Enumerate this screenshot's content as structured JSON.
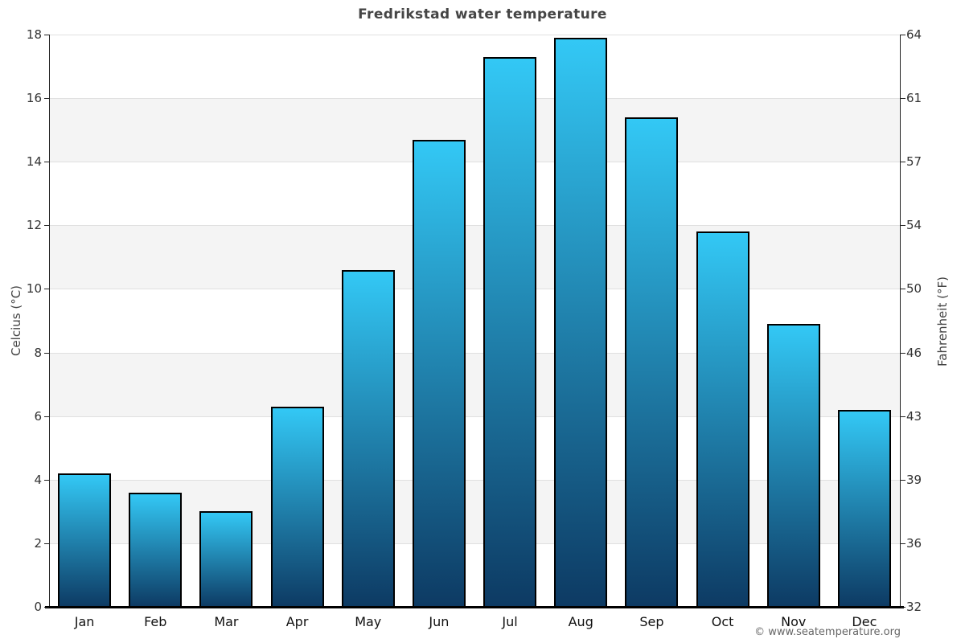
{
  "title": "Fredrikstad water temperature",
  "copyright": "© www.seatemperature.org",
  "chart_data": {
    "type": "bar",
    "title": "Fredrikstad water temperature",
    "categories": [
      "Jan",
      "Feb",
      "Mar",
      "Apr",
      "May",
      "Jun",
      "Jul",
      "Aug",
      "Sep",
      "Oct",
      "Nov",
      "Dec"
    ],
    "values": [
      4.2,
      3.6,
      3.0,
      6.3,
      10.6,
      14.7,
      17.3,
      17.9,
      15.4,
      11.8,
      8.9,
      6.2
    ],
    "ylabel_left": "Celcius (°C)",
    "ylabel_right": "Fahrenheit (°F)",
    "ylim": [
      0,
      18
    ],
    "yticks_left": [
      0,
      2,
      4,
      6,
      8,
      10,
      12,
      14,
      16,
      18
    ],
    "yticks_left_labels": [
      "0",
      "2",
      "4",
      "6",
      "8",
      "10",
      "12",
      "14",
      "16",
      "18"
    ],
    "yticks_right_labels": [
      "32",
      "36",
      "39",
      "43",
      "46",
      "50",
      "54",
      "57",
      "61",
      "64"
    ],
    "grid": "alternating horizontal bands every 2°C, light gridlines at even ticks",
    "legend": "none",
    "colors": {
      "bar_top": "#33c8f5",
      "bar_bottom": "#0d3a63",
      "bar_border": "#000000",
      "band": "#f4f4f4",
      "gridline": "#e0e0e0",
      "axis_line": "#222222",
      "bottom_axis": "#000000",
      "tick_text": "#333333",
      "title_text": "#454545",
      "copyright_text": "#666666"
    }
  }
}
